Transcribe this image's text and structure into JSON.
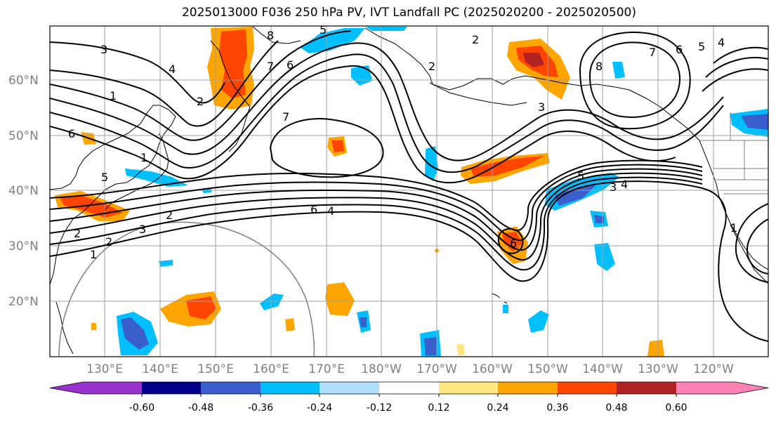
{
  "title": "2025013000 F036 250 hPa PV, IVT Landfall PC (2025020200 - 2025020500)",
  "map": {
    "projection": "PlateCarree",
    "lon_range": [
      120,
      250
    ],
    "lat_range": [
      10,
      70
    ],
    "lat_labels": [
      "60°N",
      "50°N",
      "40°N",
      "30°N",
      "20°N"
    ],
    "lon_labels": [
      "130°E",
      "140°E",
      "150°E",
      "160°E",
      "170°E",
      "180°W",
      "170°W",
      "160°W",
      "150°W",
      "140°W",
      "130°W",
      "120°W"
    ],
    "gridlines": true,
    "grid_color": "#a0a0a0"
  },
  "contour_labels": [
    "3",
    "4",
    "1",
    "2",
    "6",
    "5",
    "1",
    "2",
    "7",
    "6",
    "8",
    "5",
    "7",
    "2",
    "1",
    "3",
    "6",
    "4",
    "5",
    "4",
    "3",
    "6",
    "8",
    "7",
    "6",
    "5",
    "4",
    "2",
    "3",
    "2",
    "1",
    "2"
  ],
  "colorbar": {
    "ticks": [
      "-0.60",
      "-0.48",
      "-0.36",
      "-0.24",
      "-0.12",
      "0.12",
      "0.24",
      "0.36",
      "0.48",
      "0.60"
    ],
    "colors": [
      "#9932cc",
      "#00008b",
      "#3a5fcd",
      "#00bfff",
      "#b0e0ff",
      "#ffffff",
      "#ffe680",
      "#ffa500",
      "#ff4500",
      "#b22222",
      "#ff82b4"
    ],
    "extend": "both"
  }
}
